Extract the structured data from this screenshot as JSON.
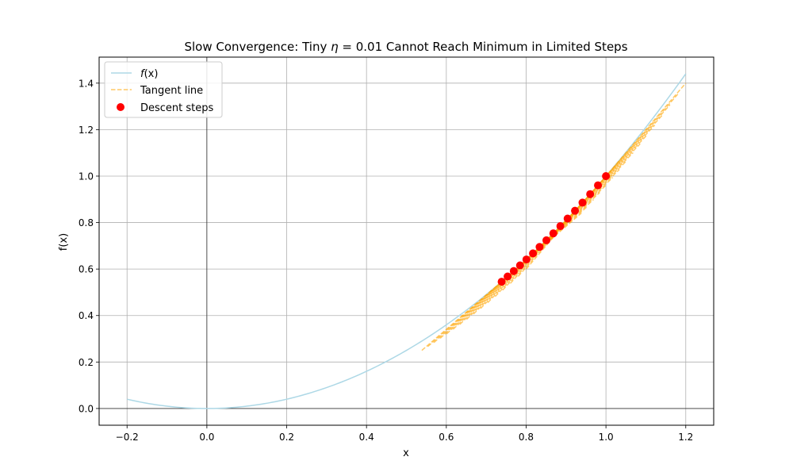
{
  "chart_data": {
    "type": "line",
    "title_prefix": "Slow Convergence: Tiny ",
    "title_symbol": "η",
    "title_suffix": " = 0.01 Cannot Reach Minimum in Limited Steps",
    "xlabel": "x",
    "ylabel": "f(x)",
    "xlim": [
      -0.27,
      1.27
    ],
    "ylim": [
      -0.072,
      1.512
    ],
    "x_ticks": [
      -0.2,
      0.0,
      0.2,
      0.4,
      0.6,
      0.8,
      1.0,
      1.2
    ],
    "x_tick_labels": [
      "−0.2",
      "0.0",
      "0.2",
      "0.4",
      "0.6",
      "0.8",
      "1.0",
      "1.2"
    ],
    "y_ticks": [
      0.0,
      0.2,
      0.4,
      0.6,
      0.8,
      1.0,
      1.2,
      1.4
    ],
    "y_tick_labels": [
      "0.0",
      "0.2",
      "0.4",
      "0.6",
      "0.8",
      "1.0",
      "1.2",
      "1.4"
    ],
    "grid": true,
    "axis_lines_at_zero": true,
    "legend_position": "top-left",
    "function": {
      "name": "f(x)",
      "expression": "x^2",
      "x_range": [
        -0.2,
        1.2
      ],
      "color": "#add8e6"
    },
    "tangent": {
      "name": "Tangent line",
      "color": "#ffa500",
      "half_width": 0.2,
      "style": "dashed",
      "opacity": 0.6
    },
    "descent": {
      "name": "Descent steps",
      "color": "#ff0000",
      "learning_rate": 0.01,
      "x": [
        1.0,
        0.98,
        0.9604,
        0.9412,
        0.9224,
        0.9039,
        0.8858,
        0.8681,
        0.8508,
        0.8337,
        0.8171,
        0.8007,
        0.7847,
        0.769,
        0.7536,
        0.7386
      ],
      "y": [
        1.0,
        0.9604,
        0.9224,
        0.8858,
        0.8508,
        0.8171,
        0.7847,
        0.7536,
        0.7238,
        0.6951,
        0.6676,
        0.6412,
        0.6158,
        0.5914,
        0.568,
        0.5455
      ]
    },
    "legend": [
      {
        "label_italic": "f",
        "label_rest": "(x)",
        "kind": "line",
        "color": "#add8e6"
      },
      {
        "label": "Tangent line",
        "kind": "dashed",
        "color": "#ffa500"
      },
      {
        "label": "Descent steps",
        "kind": "marker",
        "color": "#ff0000"
      }
    ]
  }
}
